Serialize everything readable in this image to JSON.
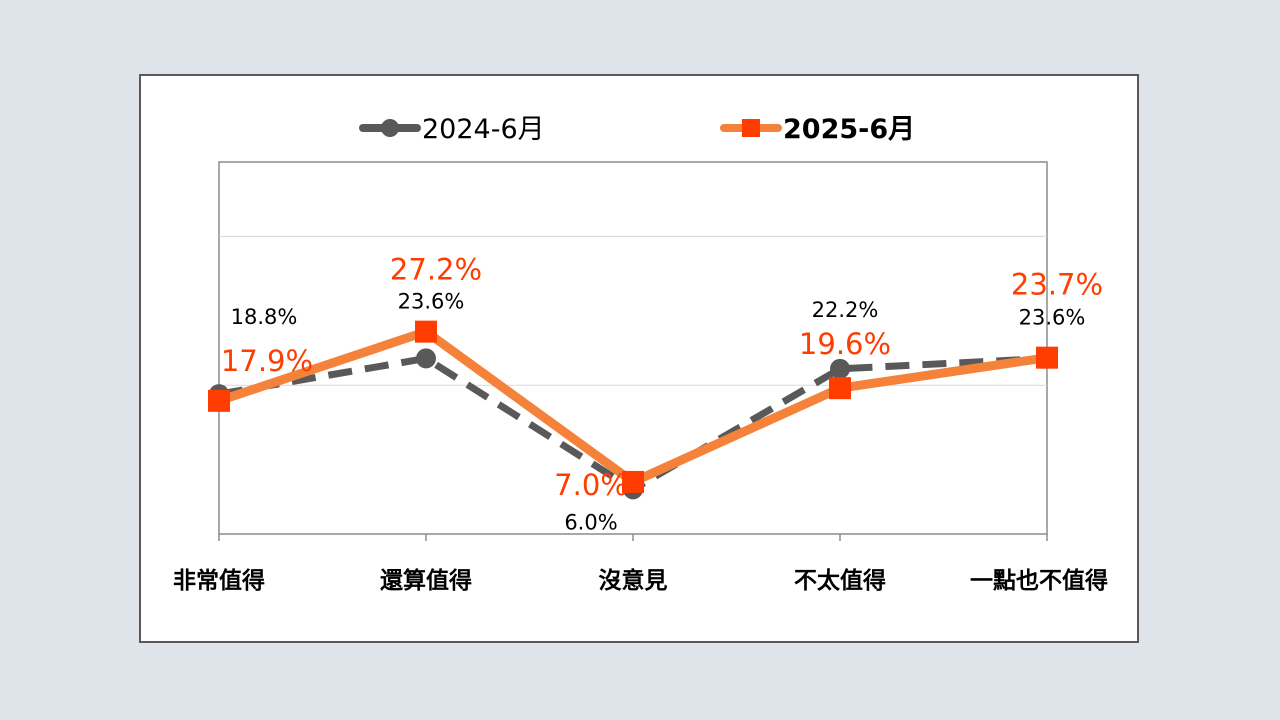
{
  "chart_data": {
    "type": "line",
    "categories": [
      "非常值得",
      "還算值得",
      "沒意見",
      "不太值得",
      "一點也不值得"
    ],
    "series": [
      {
        "name": "2024-6月",
        "values": [
          18.8,
          23.6,
          6.0,
          22.2,
          23.6
        ],
        "labels": [
          "18.8%",
          "23.6%",
          "6.0%",
          "22.2%",
          "23.6%"
        ],
        "color": "#595959",
        "style": "dashed",
        "marker": "circle"
      },
      {
        "name": "2025-6月",
        "values": [
          17.9,
          27.2,
          7.0,
          19.6,
          23.7
        ],
        "labels": [
          "17.9%",
          "27.2%",
          "7.0%",
          "19.6%",
          "23.7%"
        ],
        "color": "#f4823a",
        "marker_color": "#ff3d00",
        "style": "solid",
        "marker": "square"
      }
    ],
    "ylim": [
      0,
      50
    ],
    "grid": true,
    "legend_position": "top"
  }
}
